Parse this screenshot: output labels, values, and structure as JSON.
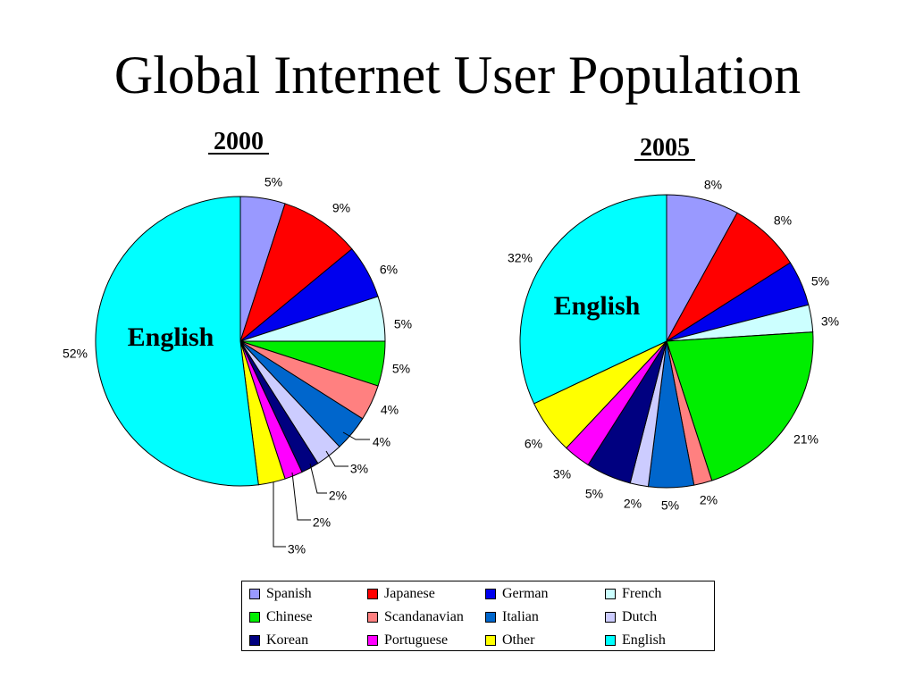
{
  "title": "Global Internet User Population",
  "chart_data": [
    {
      "type": "pie",
      "title": "2000",
      "labels": [
        "Spanish",
        "Japanese",
        "German",
        "French",
        "Chinese",
        "Scandanavian",
        "Italian",
        "Dutch",
        "Korean",
        "Portuguese",
        "Other",
        "English"
      ],
      "values": [
        5,
        9,
        6,
        5,
        5,
        4,
        4,
        3,
        2,
        2,
        3,
        52
      ],
      "value_labels": [
        "5%",
        "9%",
        "6%",
        "5%",
        "5%",
        "4%",
        "4%",
        "3%",
        "2%",
        "2%",
        "3%",
        "52%"
      ],
      "annotation": "English"
    },
    {
      "type": "pie",
      "title": "2005",
      "labels": [
        "Spanish",
        "Japanese",
        "German",
        "French",
        "Chinese",
        "Scandanavian",
        "Italian",
        "Dutch",
        "Korean",
        "Portuguese",
        "Other",
        "English"
      ],
      "values": [
        8,
        8,
        5,
        3,
        21,
        2,
        5,
        2,
        5,
        3,
        6,
        32
      ],
      "value_labels": [
        "8%",
        "8%",
        "5%",
        "3%",
        "21%",
        "2%",
        "5%",
        "2%",
        "5%",
        "3%",
        "6%",
        "32%"
      ],
      "annotation": "English"
    }
  ],
  "legend": {
    "position": "bottom",
    "items": [
      {
        "label": "Spanish",
        "color": "#9999ff"
      },
      {
        "label": "Japanese",
        "color": "#ff0000"
      },
      {
        "label": "German",
        "color": "#0000ee"
      },
      {
        "label": "French",
        "color": "#ccffff"
      },
      {
        "label": "Chinese",
        "color": "#00ee00"
      },
      {
        "label": "Scandanavian",
        "color": "#ff8080"
      },
      {
        "label": "Italian",
        "color": "#0066cc"
      },
      {
        "label": "Dutch",
        "color": "#ccccff"
      },
      {
        "label": "Korean",
        "color": "#000080"
      },
      {
        "label": "Portuguese",
        "color": "#ff00ff"
      },
      {
        "label": "Other",
        "color": "#ffff00"
      },
      {
        "label": "English",
        "color": "#00ffff"
      }
    ]
  }
}
